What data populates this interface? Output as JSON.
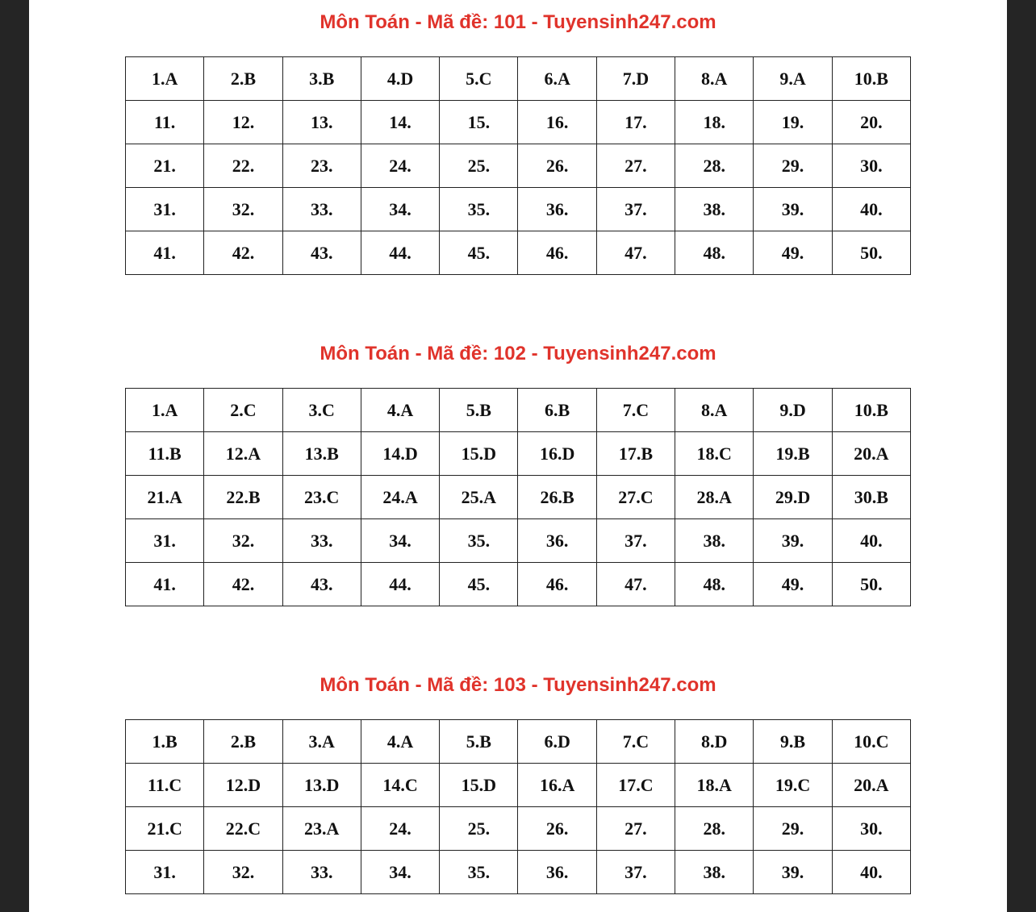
{
  "colors": {
    "title": "#e0332b",
    "background": "#252525"
  },
  "sections": [
    {
      "title": "Môn Toán - Mã đề: 101 - Tuyensinh247.com",
      "rows": [
        [
          "1.A",
          "2.B",
          "3.B",
          "4.D",
          "5.C",
          "6.A",
          "7.D",
          "8.A",
          "9.A",
          "10.B"
        ],
        [
          "11.",
          "12.",
          "13.",
          "14.",
          "15.",
          "16.",
          "17.",
          "18.",
          "19.",
          "20."
        ],
        [
          "21.",
          "22.",
          "23.",
          "24.",
          "25.",
          "26.",
          "27.",
          "28.",
          "29.",
          "30."
        ],
        [
          "31.",
          "32.",
          "33.",
          "34.",
          "35.",
          "36.",
          "37.",
          "38.",
          "39.",
          "40."
        ],
        [
          "41.",
          "42.",
          "43.",
          "44.",
          "45.",
          "46.",
          "47.",
          "48.",
          "49.",
          "50."
        ]
      ]
    },
    {
      "title": "Môn Toán - Mã đề: 102 - Tuyensinh247.com",
      "rows": [
        [
          "1.A",
          "2.C",
          "3.C",
          "4.A",
          "5.B",
          "6.B",
          "7.C",
          "8.A",
          "9.D",
          "10.B"
        ],
        [
          "11.B",
          "12.A",
          "13.B",
          "14.D",
          "15.D",
          "16.D",
          "17.B",
          "18.C",
          "19.B",
          "20.A"
        ],
        [
          "21.A",
          "22.B",
          "23.C",
          "24.A",
          "25.A",
          "26.B",
          "27.C",
          "28.A",
          "29.D",
          "30.B"
        ],
        [
          "31.",
          "32.",
          "33.",
          "34.",
          "35.",
          "36.",
          "37.",
          "38.",
          "39.",
          "40."
        ],
        [
          "41.",
          "42.",
          "43.",
          "44.",
          "45.",
          "46.",
          "47.",
          "48.",
          "49.",
          "50."
        ]
      ]
    },
    {
      "title": "Môn Toán - Mã đề: 103 - Tuyensinh247.com",
      "rows": [
        [
          "1.B",
          "2.B",
          "3.A",
          "4.A",
          "5.B",
          "6.D",
          "7.C",
          "8.D",
          "9.B",
          "10.C"
        ],
        [
          "11.C",
          "12.D",
          "13.D",
          "14.C",
          "15.D",
          "16.A",
          "17.C",
          "18.A",
          "19.C",
          "20.A"
        ],
        [
          "21.C",
          "22.C",
          "23.A",
          "24.",
          "25.",
          "26.",
          "27.",
          "28.",
          "29.",
          "30."
        ],
        [
          "31.",
          "32.",
          "33.",
          "34.",
          "35.",
          "36.",
          "37.",
          "38.",
          "39.",
          "40."
        ]
      ]
    }
  ]
}
